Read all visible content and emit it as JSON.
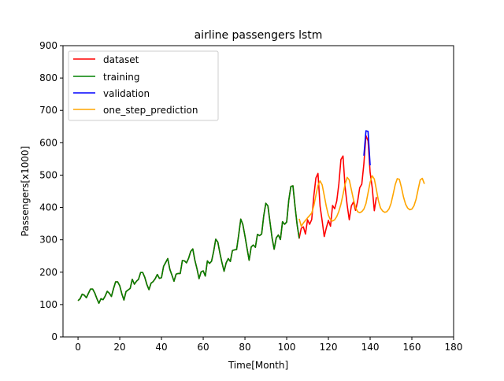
{
  "chart_data": {
    "type": "line",
    "title": "airline passengers lstm",
    "xlabel": "Time[Month]",
    "ylabel": "Passengers[x1000]",
    "xlim": [
      -7.2,
      180
    ],
    "ylim": [
      0,
      900
    ],
    "x_ticks": [
      0,
      20,
      40,
      60,
      80,
      100,
      120,
      140,
      160,
      180
    ],
    "y_ticks": [
      0,
      100,
      200,
      300,
      400,
      500,
      600,
      700,
      800,
      900
    ],
    "grid": false,
    "legend_position": "top-left",
    "series": [
      {
        "name": "dataset",
        "color": "#ff0000",
        "x_start": 0,
        "values": [
          112,
          118,
          132,
          129,
          121,
          135,
          148,
          148,
          136,
          119,
          104,
          118,
          115,
          126,
          141,
          135,
          125,
          149,
          170,
          170,
          158,
          133,
          114,
          140,
          145,
          150,
          178,
          163,
          172,
          178,
          199,
          199,
          184,
          162,
          146,
          166,
          171,
          180,
          193,
          181,
          183,
          218,
          230,
          242,
          209,
          191,
          172,
          194,
          196,
          196,
          236,
          235,
          229,
          243,
          264,
          272,
          237,
          211,
          180,
          201,
          204,
          188,
          235,
          227,
          234,
          264,
          302,
          293,
          259,
          229,
          203,
          229,
          242,
          233,
          267,
          269,
          270,
          315,
          364,
          347,
          312,
          274,
          237,
          278,
          284,
          277,
          317,
          313,
          318,
          374,
          413,
          405,
          355,
          306,
          271,
          306,
          315,
          301,
          356,
          348,
          355,
          422,
          465,
          467,
          404,
          347,
          305,
          336,
          340,
          318,
          362,
          348,
          363,
          435,
          491,
          505,
          404,
          359,
          310,
          337,
          360,
          342,
          406,
          396,
          420,
          472,
          548,
          559,
          463,
          407,
          362,
          405,
          417,
          391,
          419,
          461,
          472,
          535,
          622,
          606,
          508,
          461,
          390,
          432
        ]
      },
      {
        "name": "training",
        "color": "#008000",
        "x_start": 0,
        "values": [
          112,
          118,
          132,
          129,
          121,
          135,
          148,
          148,
          136,
          119,
          104,
          118,
          115,
          126,
          141,
          135,
          125,
          149,
          170,
          170,
          158,
          133,
          114,
          140,
          145,
          150,
          178,
          163,
          172,
          178,
          199,
          199,
          184,
          162,
          146,
          166,
          171,
          180,
          193,
          181,
          183,
          218,
          230,
          242,
          209,
          191,
          172,
          194,
          196,
          196,
          236,
          235,
          229,
          243,
          264,
          272,
          237,
          211,
          180,
          201,
          204,
          188,
          235,
          227,
          234,
          264,
          302,
          293,
          259,
          229,
          203,
          229,
          242,
          233,
          267,
          269,
          270,
          315,
          364,
          347,
          312,
          274,
          237,
          278,
          284,
          277,
          317,
          313,
          318,
          374,
          413,
          405,
          355,
          306,
          271,
          306,
          315,
          301,
          356,
          348,
          355,
          422,
          465,
          467,
          404,
          347,
          305
        ]
      },
      {
        "name": "validation",
        "color": "#0000ff",
        "x_start": 137,
        "values": [
          560,
          637,
          635,
          530
        ]
      },
      {
        "name": "one_step_prediction",
        "color": "#ffa500",
        "x_start": 106,
        "values": [
          365,
          342,
          352,
          360,
          368,
          375,
          383,
          405,
          437,
          468,
          482,
          470,
          437,
          403,
          376,
          362,
          358,
          362,
          372,
          388,
          410,
          440,
          472,
          493,
          485,
          455,
          425,
          400,
          387,
          384,
          387,
          395,
          412,
          445,
          478,
          498,
          488,
          455,
          420,
          398,
          389,
          385,
          387,
          395,
          412,
          440,
          470,
          489,
          487,
          462,
          432,
          410,
          398,
          393,
          395,
          405,
          425,
          456,
          485,
          490,
          473
        ]
      }
    ]
  }
}
